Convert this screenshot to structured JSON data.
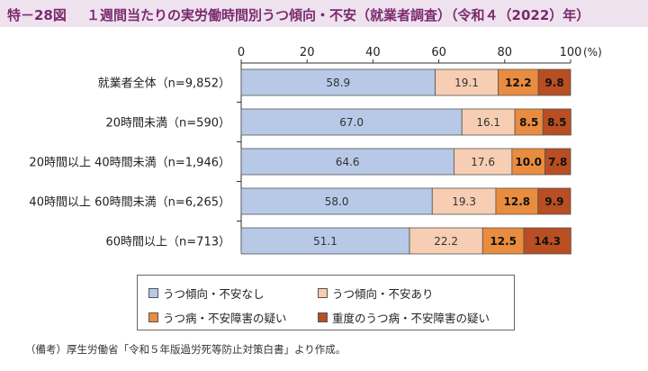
{
  "header": {
    "figure_label": "特－28図",
    "title": "１週間当たりの実労働時間別うつ傾向・不安（就業者調査）（令和４（2022）年）"
  },
  "chart_data": {
    "type": "bar",
    "orientation": "horizontal",
    "stacked": true,
    "xlim": [
      0,
      100
    ],
    "x_ticks": [
      "0",
      "20",
      "40",
      "60",
      "80",
      "100"
    ],
    "x_unit": "(%)",
    "categories": [
      "就業者全体（n=9,852）",
      "20時間未満（n=590）",
      "20時間以上 40時間未満（n=1,946）",
      "40時間以上 60時間未満（n=6,265）",
      "60時間以上（n=713）"
    ],
    "series": [
      {
        "name": "うつ傾向・不安なし",
        "color": "#b7c9e6",
        "values": [
          58.9,
          67.0,
          64.6,
          58.0,
          51.1
        ],
        "labels": [
          "58.9",
          "67.0",
          "64.6",
          "58.0",
          "51.1"
        ]
      },
      {
        "name": "うつ傾向・不安あり",
        "color": "#f7cdb3",
        "values": [
          19.1,
          16.1,
          17.6,
          19.3,
          22.2
        ],
        "labels": [
          "19.1",
          "16.1",
          "17.6",
          "19.3",
          "22.2"
        ]
      },
      {
        "name": "うつ病・不安障害の疑い",
        "color": "#e98c3f",
        "values": [
          12.2,
          8.5,
          10.0,
          12.8,
          12.5
        ],
        "labels": [
          "12.2",
          "8.5",
          "10.0",
          "12.8",
          "12.5"
        ]
      },
      {
        "name": "重度のうつ病・不安障害の疑い",
        "color": "#b84e22",
        "values": [
          9.8,
          8.5,
          7.8,
          9.9,
          14.3
        ],
        "labels": [
          "9.8",
          "8.5",
          "7.8",
          "9.9",
          "14.3"
        ]
      }
    ],
    "legend_placement": "bottom",
    "grid": false
  },
  "note": "（備考）厚生労働省「令和５年版過労死等防止対策白書」より作成。"
}
